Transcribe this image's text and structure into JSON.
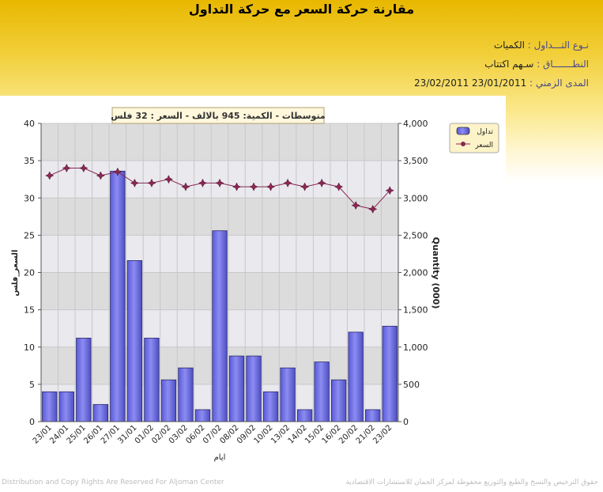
{
  "page": {
    "title": "مقارنة حركة السعر مع حركة التداول",
    "info": [
      {
        "label": "نـوع التـــداول :",
        "value": "الكميات"
      },
      {
        "label": "النطـــــــاق :",
        "value": "سـهم    اكتتاب"
      },
      {
        "label": "المدى الزمني :",
        "value": "23/01/2011 23/02/2011"
      }
    ],
    "footer_left": "Distribution and Copy Rights Are Reserved For Aljoman Center",
    "footer_right": "حقوق الترخيص والنسخ والطبع والتوزيع محفوظة لمركز الجمان للاستشارات الاقتصادية"
  },
  "chart_data": {
    "type": "bar",
    "annotation": "متوسطات - الكمية: 945 بالالف  - السعر : 32 فلس",
    "categories": [
      "23/01",
      "24/01",
      "25/01",
      "26/01",
      "27/01",
      "31/01",
      "01/02",
      "02/02",
      "03/02",
      "06/02",
      "07/02",
      "08/02",
      "09/02",
      "10/02",
      "13/02",
      "14/02",
      "15/02",
      "16/02",
      "20/02",
      "21/02",
      "23/02"
    ],
    "series": [
      {
        "name": "تداول",
        "type": "bar",
        "axis": "right",
        "color": "#7b7bea",
        "values": [
          400,
          400,
          1120,
          230,
          3360,
          2160,
          1120,
          560,
          720,
          160,
          2560,
          880,
          880,
          400,
          720,
          160,
          800,
          560,
          1200,
          160,
          1280
        ]
      },
      {
        "name": "السعر",
        "type": "line",
        "axis": "left",
        "color": "#8b2752",
        "values": [
          33,
          34,
          34,
          33,
          33.5,
          32,
          32,
          32.5,
          31.5,
          32,
          32,
          31.5,
          31.5,
          31.5,
          32,
          31.5,
          32,
          31.5,
          29,
          28.5,
          31
        ]
      }
    ],
    "xlabel": "ايام",
    "ylabel_left": "السعر_فلس",
    "ylabel_right": "Quantity (000)",
    "ylim_left": [
      0,
      40
    ],
    "ylim_right": [
      0,
      4000
    ],
    "yticks_left": [
      "0",
      "5",
      "10",
      "15",
      "20",
      "25",
      "30",
      "35",
      "40"
    ],
    "yticks_right": [
      "0",
      "500",
      "1,000",
      "1,500",
      "2,000",
      "2,500",
      "3,000",
      "3,500",
      "4,000"
    ],
    "legend_position": "top-right",
    "grid": true
  }
}
